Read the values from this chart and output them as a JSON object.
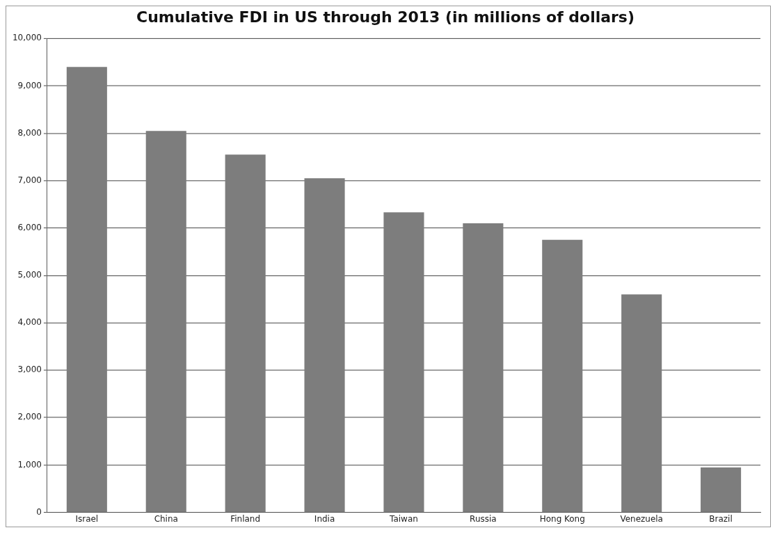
{
  "chart_data": {
    "type": "bar",
    "title": "Cumulative FDI in US through 2013 (in millions of dollars)",
    "categories": [
      "Israel",
      "China",
      "Finland",
      "India",
      "Taiwan",
      "Russia",
      "Hong Kong",
      "Venezuela",
      "Brazil"
    ],
    "values": [
      9400,
      8050,
      7550,
      7050,
      6330,
      6100,
      5750,
      4600,
      950
    ],
    "color": "#7d7d7d",
    "ylim": [
      0,
      10000
    ],
    "yticks": [
      {
        "value": 0,
        "label": "0"
      },
      {
        "value": 1000,
        "label": "1,000"
      },
      {
        "value": 2000,
        "label": "2,000"
      },
      {
        "value": 3000,
        "label": "3,000"
      },
      {
        "value": 4000,
        "label": "4,000"
      },
      {
        "value": 5000,
        "label": "5,000"
      },
      {
        "value": 6000,
        "label": "6,000"
      },
      {
        "value": 7000,
        "label": "7,000"
      },
      {
        "value": 8000,
        "label": "8,000"
      },
      {
        "value": 9000,
        "label": "9,000"
      },
      {
        "value": 10000,
        "label": "10,000"
      }
    ],
    "grid": "y"
  }
}
